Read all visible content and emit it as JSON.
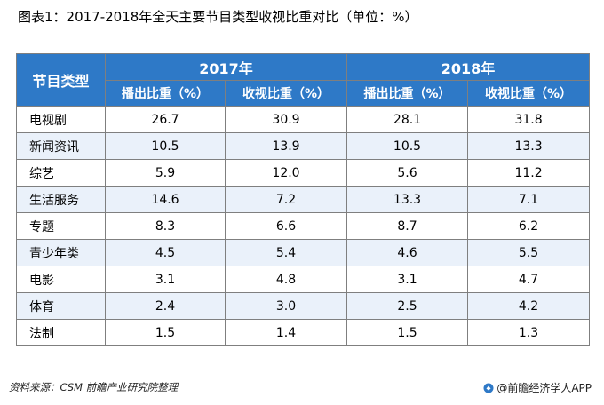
{
  "title": "图表1：2017-2018年全天主要节目类型收视比重对比（单位：%）",
  "chart_data": {
    "type": "table",
    "row_header": "节目类型",
    "groups": [
      "2017年",
      "2018年"
    ],
    "columns": [
      "播出比重（%）",
      "收视比重（%）",
      "播出比重（%）",
      "收视比重（%）"
    ],
    "rows": [
      {
        "type": "电视剧",
        "values": [
          "26.7",
          "30.9",
          "28.1",
          "31.8"
        ]
      },
      {
        "type": "新闻资讯",
        "values": [
          "10.5",
          "13.9",
          "10.5",
          "13.3"
        ]
      },
      {
        "type": "综艺",
        "values": [
          "5.9",
          "12.0",
          "5.6",
          "11.2"
        ]
      },
      {
        "type": "生活服务",
        "values": [
          "14.6",
          "7.2",
          "13.3",
          "7.1"
        ]
      },
      {
        "type": "专题",
        "values": [
          "8.3",
          "6.6",
          "8.7",
          "6.2"
        ]
      },
      {
        "type": "青少年类",
        "values": [
          "4.5",
          "5.4",
          "4.6",
          "5.5"
        ]
      },
      {
        "type": "电影",
        "values": [
          "3.1",
          "4.8",
          "3.1",
          "4.7"
        ]
      },
      {
        "type": "体育",
        "values": [
          "2.4",
          "3.0",
          "2.5",
          "4.2"
        ]
      },
      {
        "type": "法制",
        "values": [
          "1.5",
          "1.4",
          "1.5",
          "1.3"
        ]
      }
    ]
  },
  "source": "资料来源：CSM 前瞻产业研究院整理",
  "brand": "@前瞻经济学人APP",
  "colors": {
    "header_bg": "#2e79c7",
    "stripe_bg": "#eaf1fa"
  }
}
